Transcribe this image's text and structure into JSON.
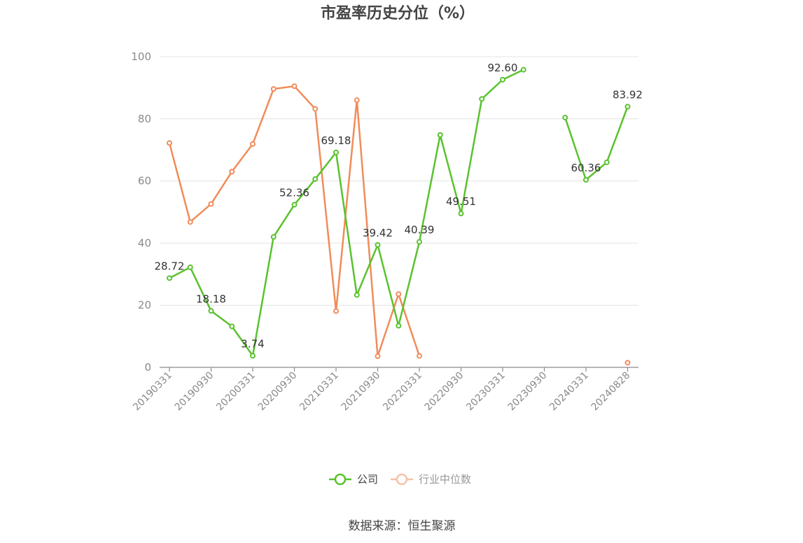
{
  "chart_data": {
    "type": "line",
    "title": "市盈率历史分位（%）",
    "xlabel": "",
    "ylabel": "",
    "ylim": [
      0,
      100
    ],
    "yticks": [
      0,
      20,
      40,
      60,
      80,
      100
    ],
    "grid": true,
    "legend_position": "bottom",
    "x": [
      "20190331",
      "20190630",
      "20190930",
      "20191231",
      "20200331",
      "20200630",
      "20200930",
      "20201231",
      "20210331",
      "20210630",
      "20210930",
      "20211231",
      "20220331",
      "20220630",
      "20220930",
      "20221231",
      "20230331",
      "20230630",
      "20230930",
      "20231231",
      "20240331",
      "20240630",
      "20240828"
    ],
    "x_tick_labels": [
      "20190331",
      "20190930",
      "20200331",
      "20200930",
      "20210331",
      "20210930",
      "20220331",
      "20220930",
      "20230331",
      "20230930",
      "20240331",
      "20240828"
    ],
    "series": [
      {
        "name": "公司",
        "color": "#5ac22e",
        "values": [
          28.72,
          32.2,
          18.18,
          13.2,
          3.74,
          42.0,
          52.36,
          60.6,
          69.18,
          23.3,
          39.42,
          13.4,
          40.39,
          74.8,
          49.51,
          86.4,
          92.6,
          95.8,
          null,
          80.4,
          60.36,
          66.0,
          83.92
        ],
        "labels": {
          "0": "28.72",
          "2": "18.18",
          "4": "3.74",
          "6": "52.36",
          "8": "69.18",
          "10": "39.42",
          "12": "40.39",
          "14": "49.51",
          "16": "92.60",
          "20": "60.36",
          "22": "83.92"
        }
      },
      {
        "name": "行业中位数",
        "color": "#f08c5a",
        "values": [
          72.2,
          46.8,
          52.6,
          63.0,
          71.9,
          89.6,
          90.5,
          83.2,
          18.1,
          86.0,
          3.6,
          23.6,
          3.7,
          null,
          null,
          null,
          null,
          null,
          null,
          null,
          null,
          null,
          1.5
        ],
        "labels": {}
      }
    ],
    "source": "数据来源：恒生聚源"
  },
  "legend": {
    "company": "公司",
    "industry": "行业中位数"
  }
}
